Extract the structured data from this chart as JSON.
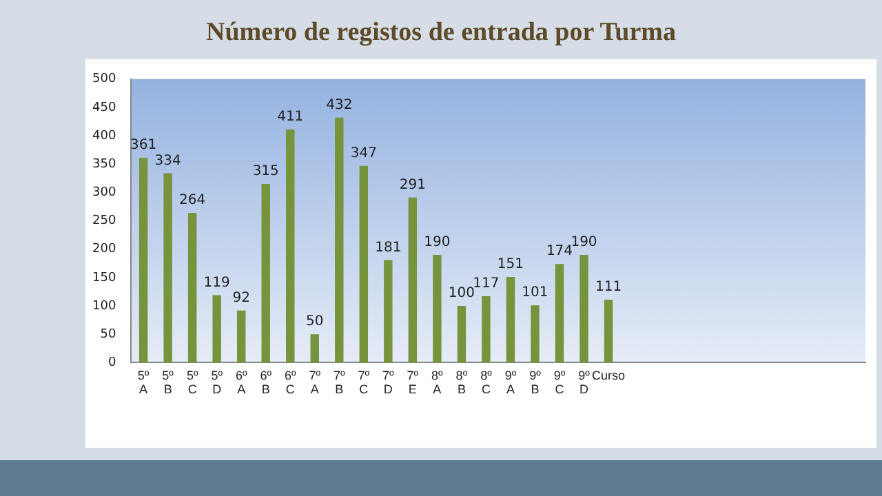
{
  "chart_data": {
    "type": "bar",
    "title": "Número de registos de entrada por Turma",
    "categories": [
      "5º A",
      "5º B",
      "5º C",
      "5º D",
      "6º A",
      "6º B",
      "6º C",
      "7º A",
      "7º B",
      "7º C",
      "7º D",
      "7º E",
      "8º A",
      "8º B",
      "8º C",
      "9º A",
      "9º B",
      "9º C",
      "9º D",
      "Curso",
      null,
      null,
      null,
      null,
      null,
      null,
      null,
      null,
      null,
      null
    ],
    "values": [
      361,
      334,
      264,
      119,
      92,
      315,
      411,
      50,
      432,
      347,
      181,
      291,
      190,
      100,
      117,
      151,
      101,
      174,
      190,
      111,
      null,
      null,
      null,
      null,
      null,
      null,
      null,
      null,
      null,
      null
    ],
    "color": "#77933c",
    "ylim": [
      0,
      500
    ],
    "yticks": [
      0,
      50,
      100,
      150,
      200,
      250,
      300,
      350,
      400,
      450,
      500
    ],
    "data_labels": true
  }
}
